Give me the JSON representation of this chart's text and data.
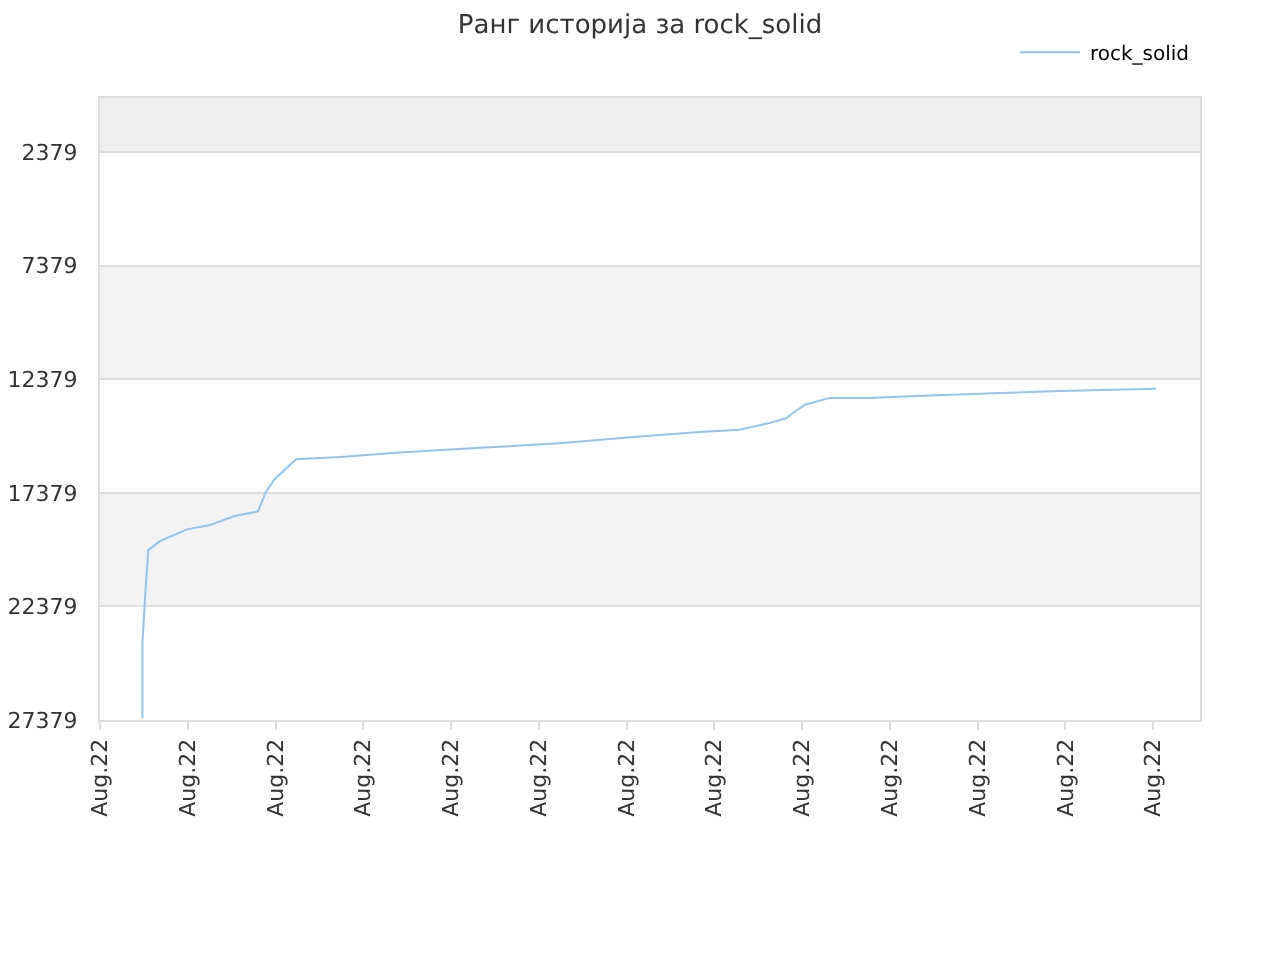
{
  "chart_data": {
    "type": "line",
    "title": "Ранг историја за rock_solid",
    "x": [
      "--08-22T00:29",
      "--08-22T00:29",
      "--08-22T00:31",
      "--08-22T00:33",
      "--08-22T00:41",
      "--08-22T00:59",
      "--08-22T01:15",
      "--08-22T01:32",
      "--08-22T01:48",
      "--08-22T01:53",
      "--08-22T01:59",
      "--08-22T02:14",
      "--08-22T02:44",
      "--08-22T03:25",
      "--08-22T04:20",
      "--08-22T05:14",
      "--08-22T06:09",
      "--08-22T06:50",
      "--08-22T07:17",
      "--08-22T07:38",
      "--08-22T07:49",
      "--08-22T07:53",
      "--08-22T08:02",
      "--08-22T08:19",
      "--08-22T08:46",
      "--08-22T09:27",
      "--08-22T10:11",
      "--08-22T10:56",
      "--08-22T12:02"
    ],
    "series": [
      {
        "name": "rock_solid",
        "color": "#90c4f5",
        "values": [
          27300,
          24000,
          21800,
          19900,
          19500,
          19000,
          18800,
          18400,
          18200,
          17400,
          16800,
          15900,
          15800,
          15600,
          15400,
          15200,
          14900,
          14700,
          14600,
          14300,
          14100,
          13900,
          13500,
          13200,
          13200,
          13100,
          13000,
          12900,
          12800
        ]
      }
    ],
    "xlim": [
      "--08-22T00:00",
      "--08-22T12:32"
    ],
    "xticks": [
      {
        "value": "--08-22T00:00",
        "label": "Aug.22"
      },
      {
        "value": "--08-22T01:00",
        "label": "Aug.22"
      },
      {
        "value": "--08-22T02:00",
        "label": "Aug.22"
      },
      {
        "value": "--08-22T03:00",
        "label": "Aug.22"
      },
      {
        "value": "--08-22T04:00",
        "label": "Aug.22"
      },
      {
        "value": "--08-22T05:00",
        "label": "Aug.22"
      },
      {
        "value": "--08-22T06:00",
        "label": "Aug.22"
      },
      {
        "value": "--08-22T07:00",
        "label": "Aug.22"
      },
      {
        "value": "--08-22T08:00",
        "label": "Aug.22"
      },
      {
        "value": "--08-22T09:00",
        "label": "Aug.22"
      },
      {
        "value": "--08-22T10:00",
        "label": "Aug.22"
      },
      {
        "value": "--08-22T11:00",
        "label": "Aug.22"
      },
      {
        "value": "--08-22T12:00",
        "label": "Aug.22"
      }
    ],
    "ylim": [
      27379,
      0
    ],
    "yticks": [
      2379,
      7379,
      12379,
      17379,
      22379,
      27379
    ],
    "bands": [
      {
        "axis": "y",
        "from": 0,
        "to": 2379,
        "color": "#eeeeee"
      },
      {
        "axis": "y",
        "from": 7379,
        "to": 12379,
        "color": "#f3f3f3"
      },
      {
        "axis": "y",
        "from": 17379,
        "to": 22379,
        "color": "#f3f3f3"
      }
    ],
    "grid": "y",
    "legend": "top right",
    "marker": "none",
    "line_style": "solid"
  }
}
